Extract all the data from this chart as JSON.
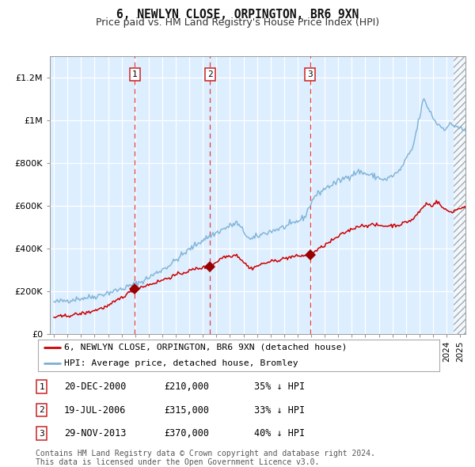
{
  "title": "6, NEWLYN CLOSE, ORPINGTON, BR6 9XN",
  "subtitle": "Price paid vs. HM Land Registry's House Price Index (HPI)",
  "ylim": [
    0,
    1300000
  ],
  "xlim_start": 1994.7,
  "xlim_end": 2025.4,
  "yticks": [
    0,
    200000,
    400000,
    600000,
    800000,
    1000000,
    1200000
  ],
  "ytick_labels": [
    "£0",
    "£200K",
    "£400K",
    "£600K",
    "£800K",
    "£1M",
    "£1.2M"
  ],
  "xticks": [
    1995,
    1996,
    1997,
    1998,
    1999,
    2000,
    2001,
    2002,
    2003,
    2004,
    2005,
    2006,
    2007,
    2008,
    2009,
    2010,
    2011,
    2012,
    2013,
    2014,
    2015,
    2016,
    2017,
    2018,
    2019,
    2020,
    2021,
    2022,
    2023,
    2024,
    2025
  ],
  "plot_bg_color": "#ddeeff",
  "grid_color": "#ffffff",
  "hatch_region_start": 2024.5,
  "sale_dates": [
    2000.97,
    2006.54,
    2013.91
  ],
  "sale_prices": [
    210000,
    315000,
    370000
  ],
  "sale_labels": [
    "1",
    "2",
    "3"
  ],
  "red_line_color": "#cc0000",
  "blue_line_color": "#7aafd4",
  "marker_color": "#990000",
  "legend_label_red": "6, NEWLYN CLOSE, ORPINGTON, BR6 9XN (detached house)",
  "legend_label_blue": "HPI: Average price, detached house, Bromley",
  "table_rows": [
    {
      "num": "1",
      "date": "20-DEC-2000",
      "price": "£210,000",
      "hpi": "35% ↓ HPI"
    },
    {
      "num": "2",
      "date": "19-JUL-2006",
      "price": "£315,000",
      "hpi": "33% ↓ HPI"
    },
    {
      "num": "3",
      "date": "29-NOV-2013",
      "price": "£370,000",
      "hpi": "40% ↓ HPI"
    }
  ],
  "footer": "Contains HM Land Registry data © Crown copyright and database right 2024.\nThis data is licensed under the Open Government Licence v3.0.",
  "hpi_anchors_t": [
    1995.0,
    1996.5,
    1998.0,
    2000.0,
    2001.5,
    2003.5,
    2005.0,
    2006.0,
    2007.5,
    2008.5,
    2009.5,
    2010.5,
    2011.5,
    2012.5,
    2013.5,
    2014.2,
    2015.0,
    2016.5,
    2017.5,
    2018.5,
    2019.5,
    2020.5,
    2021.5,
    2022.3,
    2022.7,
    2023.2,
    2023.8,
    2024.3,
    2024.8,
    2025.3
  ],
  "hpi_anchors_v": [
    148000,
    162000,
    175000,
    210000,
    245000,
    320000,
    395000,
    440000,
    490000,
    520000,
    440000,
    470000,
    490000,
    510000,
    545000,
    640000,
    680000,
    730000,
    760000,
    740000,
    720000,
    760000,
    870000,
    1100000,
    1050000,
    990000,
    960000,
    980000,
    970000,
    950000
  ],
  "red_anchors_t": [
    1995.0,
    1996.0,
    1997.5,
    1999.0,
    2000.97,
    2002.5,
    2004.0,
    2005.5,
    2006.54,
    2007.5,
    2008.5,
    2009.5,
    2010.5,
    2011.5,
    2012.5,
    2013.91,
    2015.0,
    2016.5,
    2017.5,
    2018.5,
    2019.5,
    2020.5,
    2021.5,
    2022.5,
    2022.9,
    2023.3,
    2023.8,
    2024.3,
    2025.3
  ],
  "red_anchors_v": [
    78000,
    85000,
    100000,
    130000,
    210000,
    240000,
    275000,
    305000,
    315000,
    360000,
    370000,
    305000,
    330000,
    345000,
    360000,
    370000,
    415000,
    475000,
    505000,
    510000,
    505000,
    510000,
    535000,
    610000,
    600000,
    620000,
    585000,
    570000,
    595000
  ]
}
